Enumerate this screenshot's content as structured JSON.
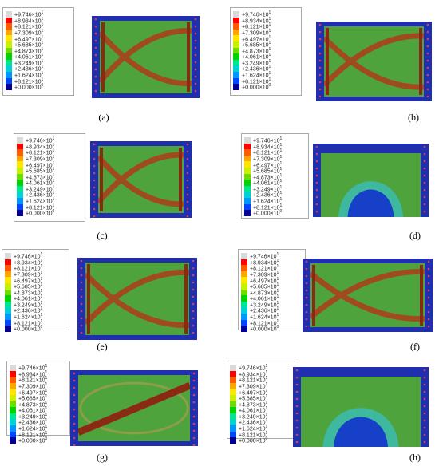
{
  "legend": {
    "exponent_suffix": "1",
    "entries": [
      {
        "label": "+9.746×10",
        "color": "#d9d9d9"
      },
      {
        "label": "+8.934×10",
        "color": "#ff0000"
      },
      {
        "label": "+8.121×10",
        "color": "#ff5a00"
      },
      {
        "label": "+7.309×10",
        "color": "#ffa500"
      },
      {
        "label": "+6.497×10",
        "color": "#ffe600"
      },
      {
        "label": "+5.685×10",
        "color": "#c8f000"
      },
      {
        "label": "+4.873×10",
        "color": "#6edc00"
      },
      {
        "label": "+4.061×10",
        "color": "#00d400"
      },
      {
        "label": "+3.249×10",
        "color": "#00e68c"
      },
      {
        "label": "+2.436×10",
        "color": "#00d2d2"
      },
      {
        "label": "+1.624×10",
        "color": "#0096ff"
      },
      {
        "label": "+8.121×10",
        "color": "#0046ff"
      },
      {
        "label": "+0.000×10",
        "color": "#000096"
      }
    ],
    "last_exponent": "0"
  },
  "colors": {
    "mesh_green": "#4fa33d",
    "stress_band": "#a04a20",
    "core_band": "#8b2a12",
    "column_blue": "#1f2fb0",
    "light_band": "#b89a50"
  },
  "panels": [
    {
      "id": "a",
      "caption": "(a)",
      "pattern": "x-band"
    },
    {
      "id": "b",
      "caption": "(b)",
      "pattern": "x-band"
    },
    {
      "id": "c",
      "caption": "(c)",
      "pattern": "x-band"
    },
    {
      "id": "d",
      "caption": "(d)",
      "pattern": "arch"
    },
    {
      "id": "e",
      "caption": "(e)",
      "pattern": "x-band"
    },
    {
      "id": "f",
      "caption": "(f)",
      "pattern": "x-band"
    },
    {
      "id": "g",
      "caption": "(g)",
      "pattern": "diagonal"
    },
    {
      "id": "h",
      "caption": "(h)",
      "pattern": "arch"
    }
  ]
}
